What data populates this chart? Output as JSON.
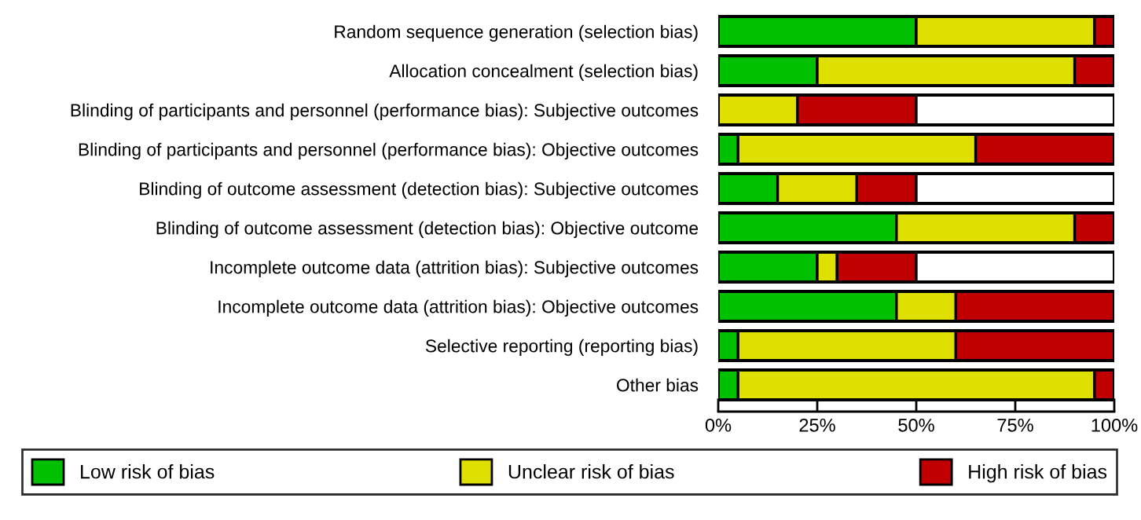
{
  "chart_data": {
    "type": "bar",
    "orientation": "horizontal",
    "stacked": true,
    "categories": [
      "Random sequence generation (selection bias)",
      "Allocation concealment (selection bias)",
      "Blinding of participants and personnel (performance bias): Subjective outcomes",
      "Blinding of participants and personnel (performance bias): Objective outcomes",
      "Blinding of outcome assessment (detection bias): Subjective outcomes",
      "Blinding of outcome assessment (detection bias): Objective outcome",
      "Incomplete outcome data (attrition bias): Subjective outcomes",
      "Incomplete outcome data (attrition bias): Objective outcomes",
      "Selective reporting (reporting bias)",
      "Other bias"
    ],
    "series": [
      {
        "name": "Low risk of bias",
        "color": "#00c000",
        "values": [
          50,
          25,
          0,
          5,
          15,
          45,
          25,
          45,
          5,
          5
        ]
      },
      {
        "name": "Unclear risk of bias",
        "color": "#e0e000",
        "values": [
          45,
          65,
          20,
          60,
          20,
          45,
          5,
          15,
          55,
          90
        ]
      },
      {
        "name": "High risk of bias",
        "color": "#c00000",
        "values": [
          5,
          10,
          30,
          35,
          15,
          10,
          20,
          40,
          40,
          5
        ]
      }
    ],
    "xlim": [
      0,
      100
    ],
    "xticks": [
      {
        "value": 0,
        "label": "0%"
      },
      {
        "value": 25,
        "label": "25%"
      },
      {
        "value": 50,
        "label": "50%"
      },
      {
        "value": 75,
        "label": "75%"
      },
      {
        "value": 100,
        "label": "100%"
      }
    ],
    "legend": "bottom"
  }
}
